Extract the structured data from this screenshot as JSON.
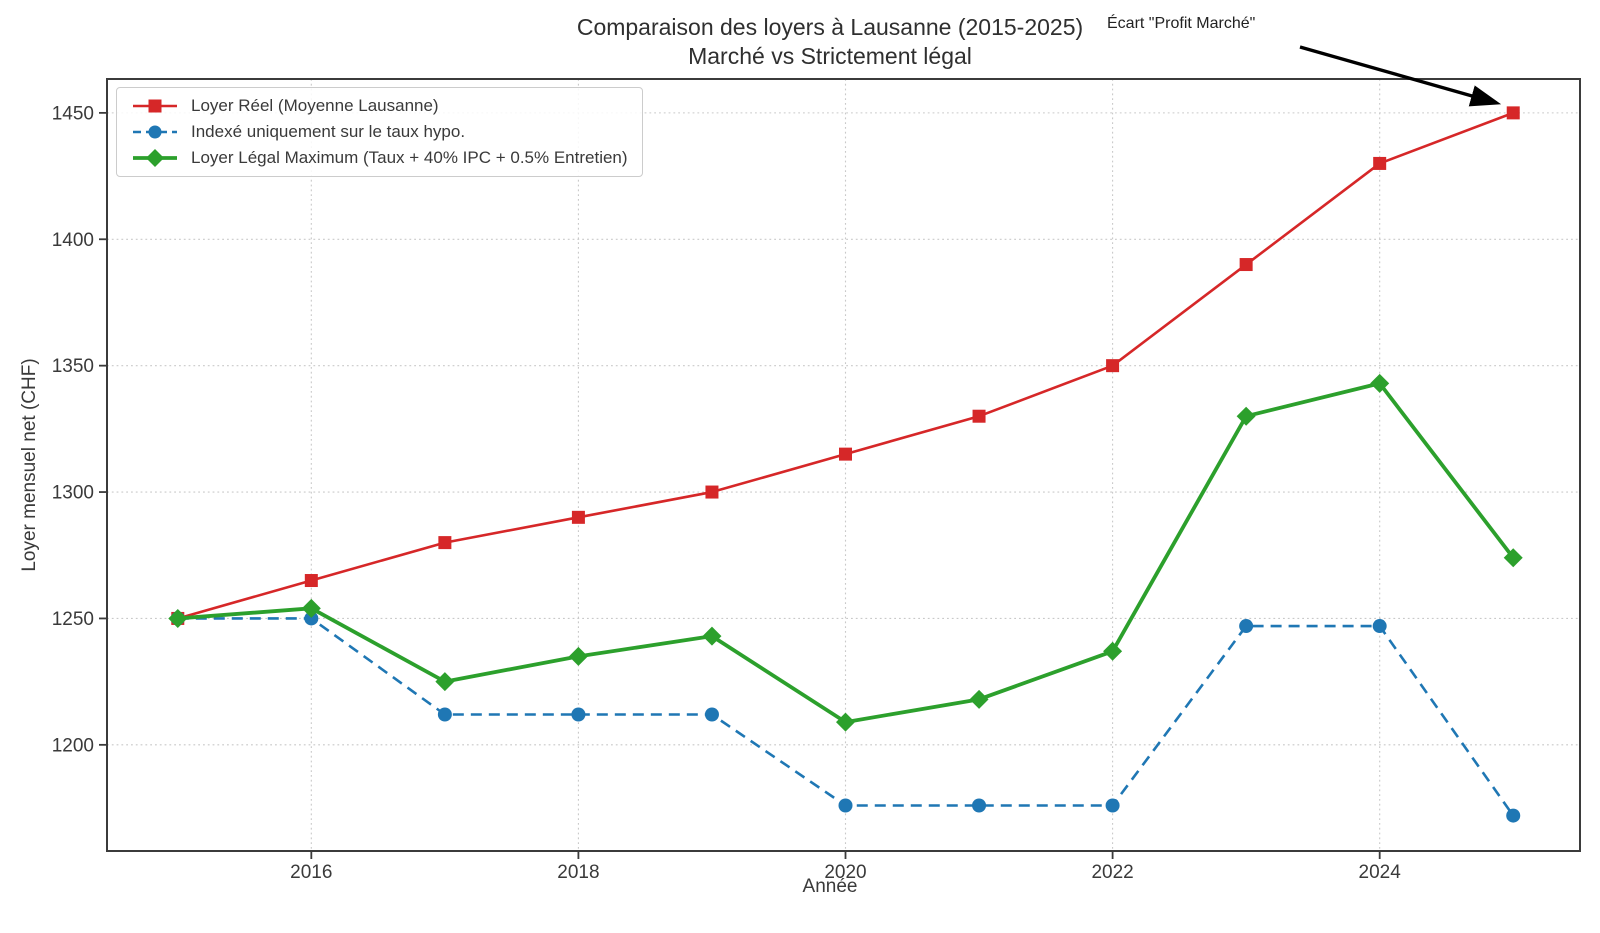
{
  "chart_data": {
    "type": "line",
    "title": "Comparaison des loyers à Lausanne (2015-2025)",
    "subtitle": "Marché vs Strictement légal",
    "xlabel": "Année",
    "ylabel": "Loyer mensuel net (CHF)",
    "x": [
      2015,
      2016,
      2017,
      2018,
      2019,
      2020,
      2021,
      2022,
      2023,
      2024,
      2025
    ],
    "series": [
      {
        "id": "loyer-reel",
        "name": "Loyer Réel (Moyenne Lausanne)",
        "color": "#d62728",
        "marker": "square",
        "line": "solid",
        "values": [
          1250,
          1265,
          1280,
          1290,
          1300,
          1315,
          1330,
          1350,
          1390,
          1430,
          1450
        ]
      },
      {
        "id": "indexe-taux-hypo",
        "name": "Indexé uniquement sur le taux hypo.",
        "color": "#1f77b4",
        "marker": "circle",
        "line": "dashed",
        "values": [
          1250,
          1250,
          1212,
          1212,
          1212,
          1176,
          1176,
          1176,
          1247,
          1247,
          1172
        ]
      },
      {
        "id": "loyer-legal-max",
        "name": "Loyer Légal Maximum (Taux + 40% IPC + 0.5% Entretien)",
        "color": "#2ca02c",
        "marker": "diamond",
        "line": "solid",
        "values": [
          1250,
          1254,
          1225,
          1235,
          1243,
          1209,
          1218,
          1237,
          1330,
          1343,
          1274
        ]
      }
    ],
    "xticks": [
      2016,
      2018,
      2020,
      2022,
      2024
    ],
    "yticks": [
      1200,
      1250,
      1300,
      1350,
      1400,
      1450
    ],
    "xlim": [
      2014.47,
      2025.5
    ],
    "ylim": [
      1158,
      1463.4
    ],
    "grid": true,
    "legend_position": "upper left",
    "annotation": {
      "text": "Écart \"Profit Marché\"",
      "points_to_x": 2025,
      "points_to_y": 1450
    }
  },
  "colors": {
    "grid": "#c9c9c9",
    "spine": "#3b3b3b",
    "tick_text": "#3a3a3a",
    "annotation_arrow": "#000000"
  }
}
